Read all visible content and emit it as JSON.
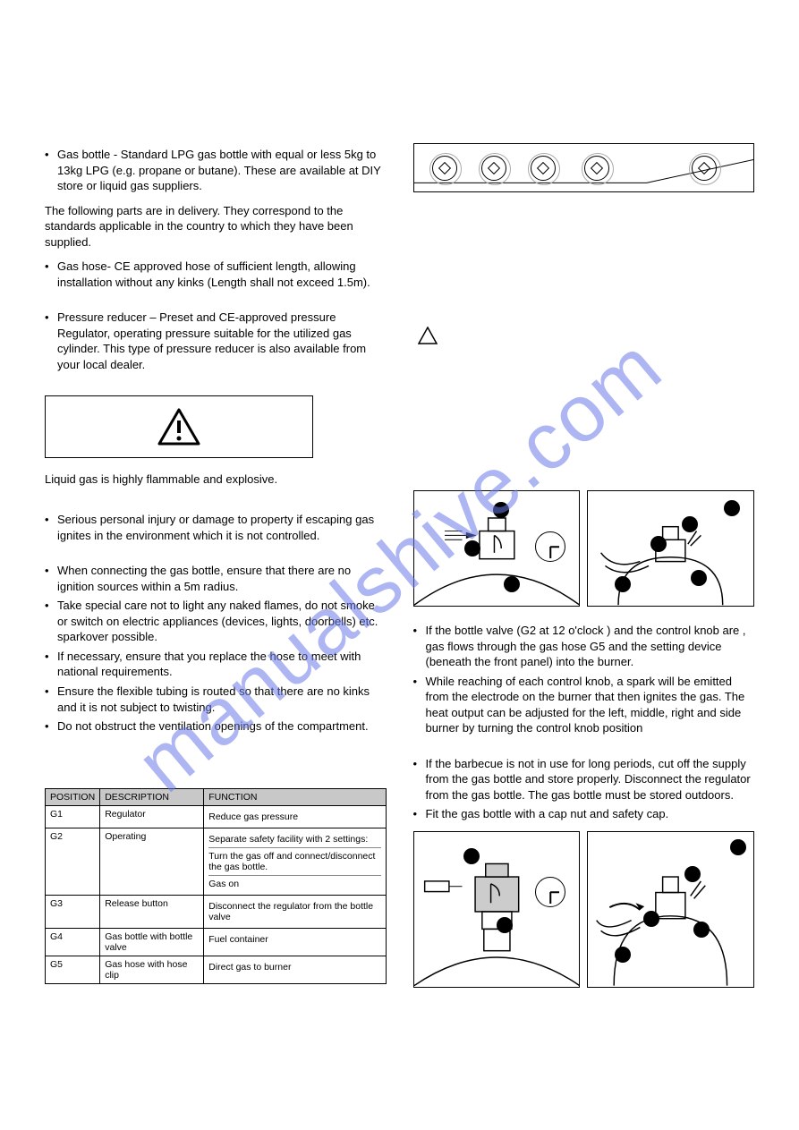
{
  "watermark": "manualshive.com",
  "left": {
    "bullets_top": [
      "Gas bottle - Standard LPG gas bottle with equal or less 5kg to 13kg LPG (e.g. propane or butane). These are available at DIY store or liquid gas suppliers."
    ],
    "para1": "The following parts are               in delivery. They correspond to the standards applicable in the country to which they have been supplied.",
    "bullets_mid": [
      "Gas hose- CE approved hose of sufficient length, allowing installation without any kinks (Length shall not exceed 1.5m).",
      "Pressure reducer – Preset and CE-approved pressure Regulator, operating pressure suitable for the utilized gas cylinder. This type of pressure reducer is also available from your local dealer."
    ],
    "flammable": "Liquid gas is highly flammable and explosive.",
    "bullets_low": [
      "Serious personal injury or damage to property if escaping gas ignites in the environment which it is not controlled.",
      "When connecting the gas bottle, ensure that there are no ignition sources within a 5m radius.",
      "Take special care not to light any naked flames, do not smoke or switch on electric appliances (devices, lights, doorbells) etc. sparkover possible.",
      "If necessary, ensure that you replace the hose to meet with national requirements.",
      "Ensure the flexible tubing is routed so that there are no kinks and it is not subject to twisting.",
      "Do not obstruct the ventilation openings of the compartment."
    ],
    "table": {
      "headers": [
        "POSITION",
        "DESCRIPTION",
        "FUNCTION"
      ],
      "rows": [
        {
          "pos": "G1",
          "desc": "Regulator",
          "func": [
            "Reduce gas pressure"
          ]
        },
        {
          "pos": "G2",
          "desc": "Operating",
          "func": [
            "Separate safety facility with 2 settings:",
            "Turn the gas off and connect/disconnect the gas bottle.",
            "Gas on"
          ]
        },
        {
          "pos": "G3",
          "desc": "Release button",
          "func": [
            "Disconnect the regulator from the bottle valve"
          ]
        },
        {
          "pos": "G4",
          "desc": "Gas bottle with bottle valve",
          "func": [
            "Fuel container"
          ]
        },
        {
          "pos": "G5",
          "desc": "Gas hose with hose clip",
          "func": [
            "Direct gas to burner"
          ]
        }
      ]
    }
  },
  "right": {
    "knob_positions": [
      20,
      75,
      130,
      190,
      310
    ],
    "bullets1": [
      "If the bottle valve (G2 at 12 o'clock                   ) and the control knob are          , gas flows through the gas hose G5 and the setting device (beneath the front panel) into the burner.",
      "While reaching                of each control knob, a spark will be emitted from the electrode on the burner that then ignites the gas. The heat output can be adjusted for the left, middle, right and side burner by turning the control knob position"
    ],
    "bullets2": [
      "If the barbecue is not in use for long periods, cut off the supply from the gas bottle and store properly. Disconnect the regulator from the gas bottle. The gas bottle must be stored outdoors.",
      "Fit the gas bottle with a cap nut and safety cap."
    ]
  }
}
